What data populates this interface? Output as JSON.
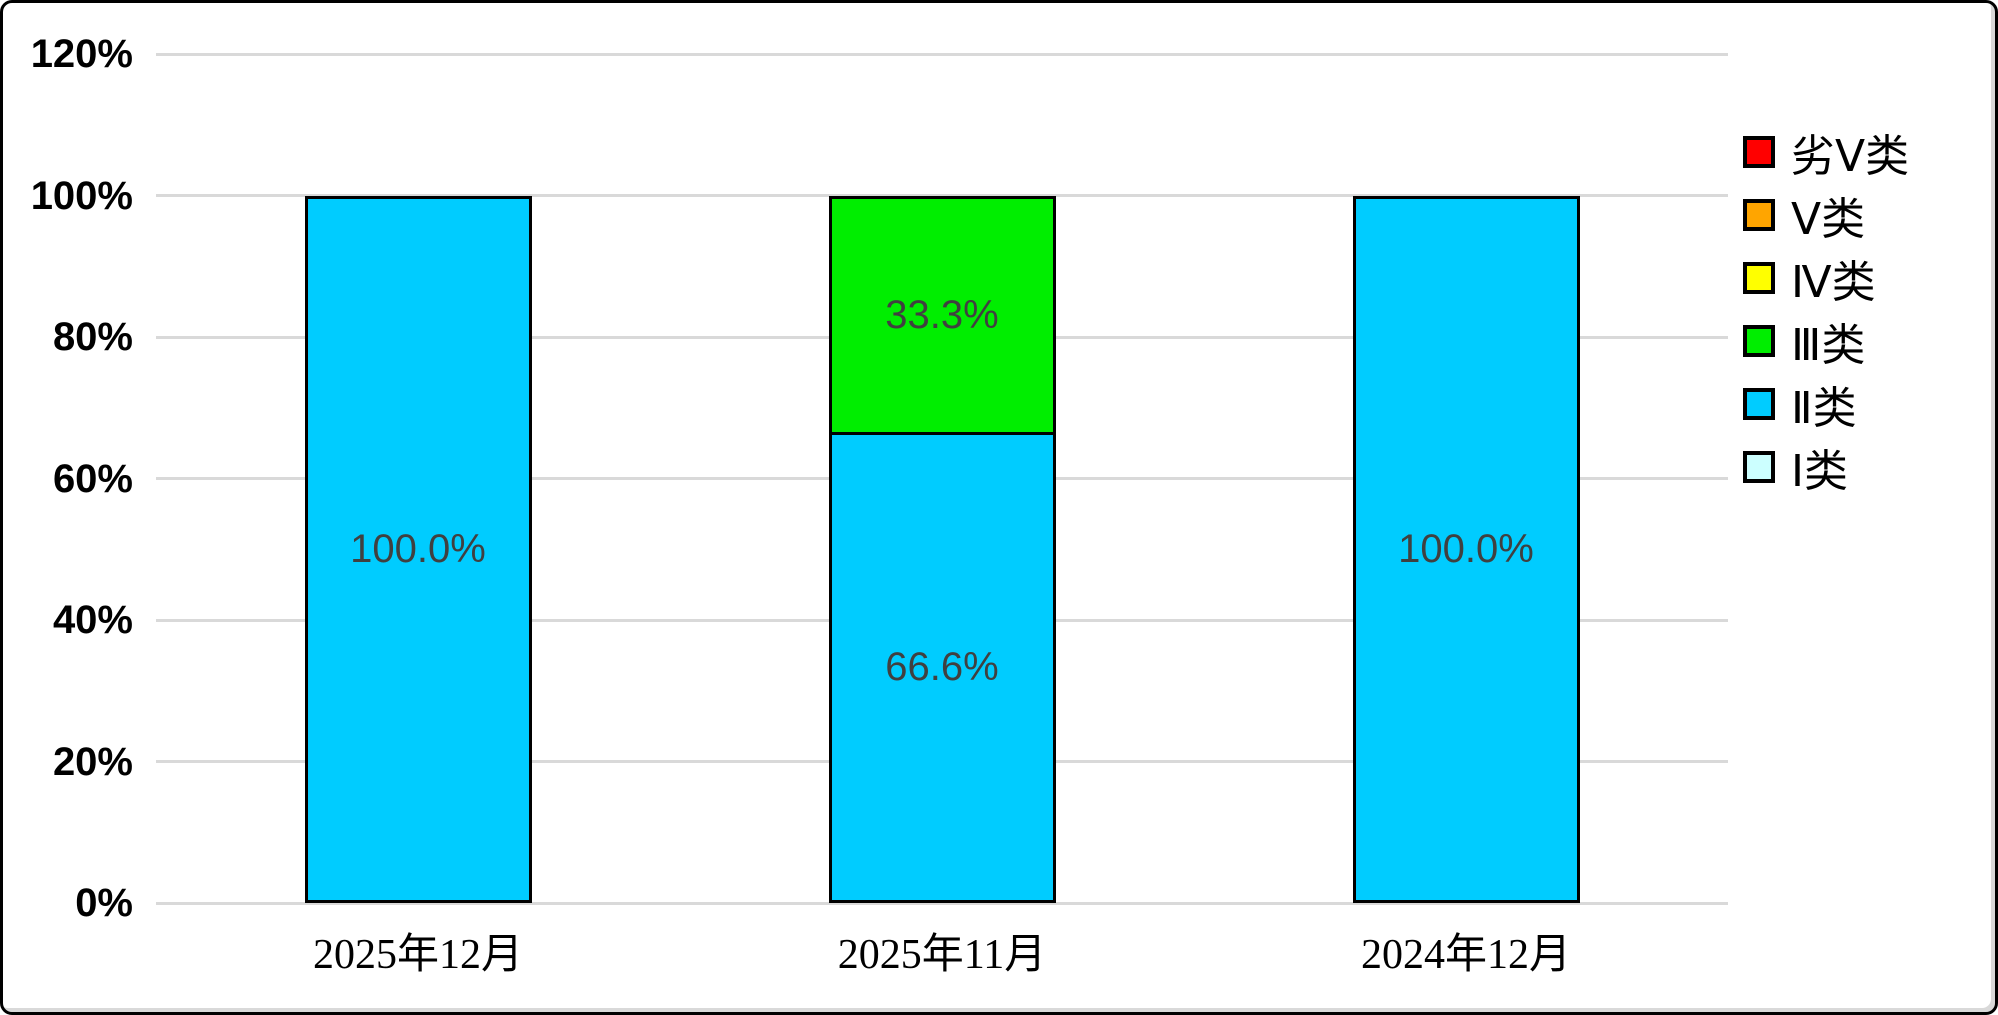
{
  "chart_data": {
    "type": "bar",
    "stacked": true,
    "title": "",
    "categories": [
      "2025年12月",
      "2025年11月",
      "2024年12月"
    ],
    "series": [
      {
        "name": "Ⅰ类",
        "color": "#CCFFFF",
        "values": [
          0,
          0,
          0
        ],
        "labels": [
          "",
          "",
          ""
        ]
      },
      {
        "name": "Ⅱ类",
        "color": "#00CCFF",
        "values": [
          100.0,
          66.6,
          100.0
        ],
        "labels": [
          "100.0%",
          "66.6%",
          "100.0%"
        ]
      },
      {
        "name": "Ⅲ类",
        "color": "#00EE00",
        "values": [
          0,
          33.3,
          0
        ],
        "labels": [
          "",
          "33.3%",
          ""
        ]
      },
      {
        "name": "Ⅳ类",
        "color": "#FFFF00",
        "values": [
          0,
          0,
          0
        ],
        "labels": [
          "",
          "",
          ""
        ]
      },
      {
        "name": "Ⅴ类",
        "color": "#FFA500",
        "values": [
          0,
          0,
          0
        ],
        "labels": [
          "",
          "",
          ""
        ]
      },
      {
        "name": "劣Ⅴ类",
        "color": "#FF0000",
        "values": [
          0,
          0,
          0
        ],
        "labels": [
          "",
          "",
          ""
        ]
      }
    ],
    "y_axis": {
      "min": 0,
      "max": 120,
      "step": 20,
      "tick_labels": [
        "0%",
        "20%",
        "40%",
        "60%",
        "80%",
        "100%",
        "120%"
      ]
    },
    "legend": {
      "position": "right",
      "items_top_to_bottom": [
        "劣Ⅴ类",
        "Ⅴ类",
        "Ⅳ类",
        "Ⅲ类",
        "Ⅱ类",
        "Ⅰ类"
      ]
    },
    "grid": true,
    "gridline_color": "#D9D9D9",
    "data_label_color": "#404040"
  }
}
